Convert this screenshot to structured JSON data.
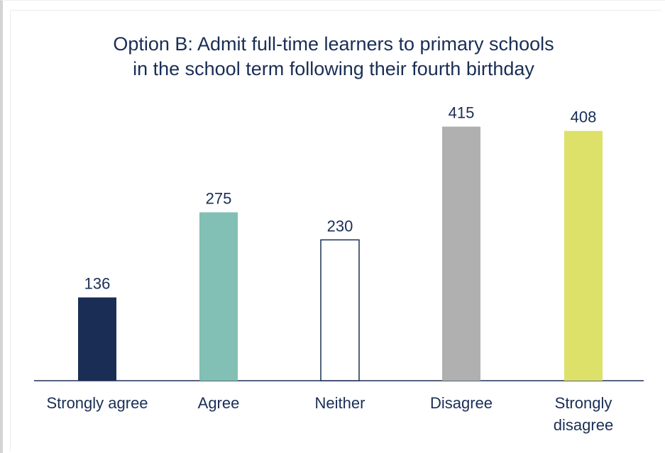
{
  "chart_data": {
    "type": "bar",
    "title_lines": [
      "Option B: Admit full-time learners to primary schools",
      "in the school term following their fourth birthday"
    ],
    "categories": [
      [
        "Strongly agree"
      ],
      [
        "Agree"
      ],
      [
        "Neither"
      ],
      [
        "Disagree"
      ],
      [
        "Strongly",
        "disagree"
      ]
    ],
    "values": [
      136,
      275,
      230,
      415,
      408
    ],
    "data_labels": [
      "136",
      "275",
      "230",
      "415",
      "408"
    ],
    "colors": [
      "#1a2e55",
      "#82bfb4",
      "#ffffff",
      "#b0b0b0",
      "#dde169"
    ],
    "outline_color": "#1a2e55",
    "ylim": [
      0,
      440
    ],
    "grid": false,
    "legend": "none"
  }
}
